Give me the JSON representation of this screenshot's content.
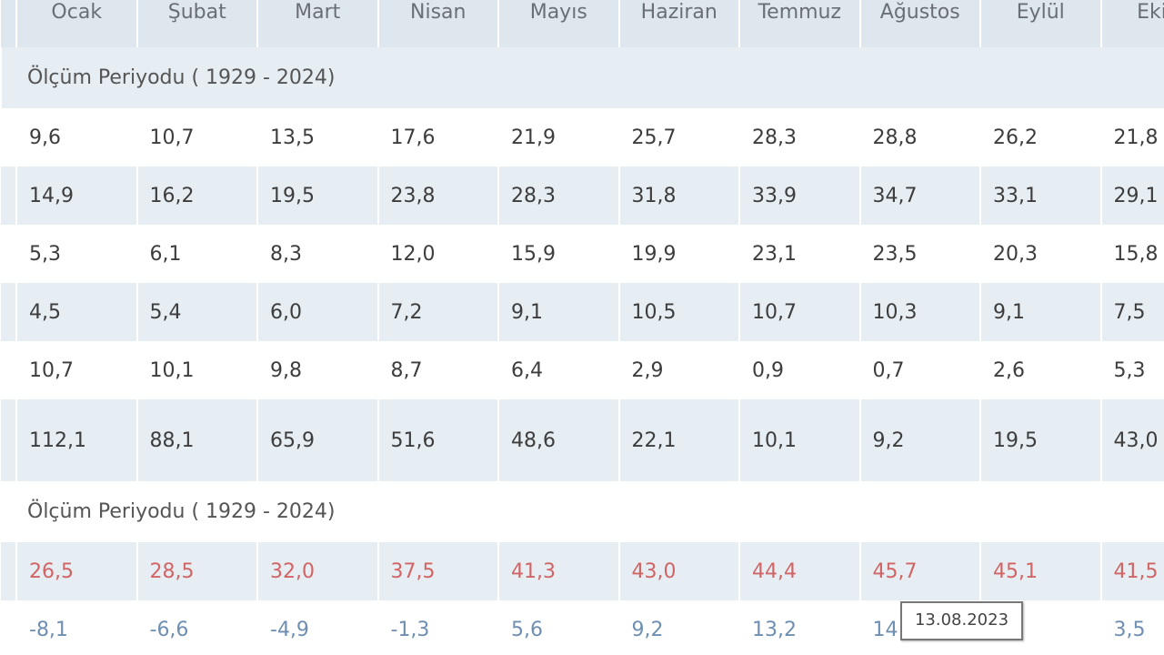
{
  "months": [
    "Ocak",
    "Şubat",
    "Mart",
    "Nisan",
    "Mayıs",
    "Haziran",
    "Temmuz",
    "Ağustos",
    "Eylül",
    "Ekim"
  ],
  "period_label_1": "Ölçüm Periyodu ( 1929 - 2024)",
  "period_label_2": "Ölçüm Periyodu ( 1929 - 2024)",
  "rows": [
    [
      "9,6",
      "10,7",
      "13,5",
      "17,6",
      "21,9",
      "25,7",
      "28,3",
      "28,8",
      "26,2",
      "21,8"
    ],
    [
      "14,9",
      "16,2",
      "19,5",
      "23,8",
      "28,3",
      "31,8",
      "33,9",
      "34,7",
      "33,1",
      "29,1"
    ],
    [
      "5,3",
      "6,1",
      "8,3",
      "12,0",
      "15,9",
      "19,9",
      "23,1",
      "23,5",
      "20,3",
      "15,8"
    ],
    [
      "4,5",
      "5,4",
      "6,0",
      "7,2",
      "9,1",
      "10,5",
      "10,7",
      "10,3",
      "9,1",
      "7,5"
    ],
    [
      "10,7",
      "10,1",
      "9,8",
      "8,7",
      "6,4",
      "2,9",
      "0,9",
      "0,7",
      "2,6",
      "5,3"
    ],
    [
      "112,1",
      "88,1",
      "65,9",
      "51,6",
      "48,6",
      "22,1",
      "10,1",
      "9,2",
      "19,5",
      "43,0"
    ]
  ],
  "extreme_max": [
    "26,5",
    "28,5",
    "32,0",
    "37,5",
    "41,3",
    "43,0",
    "44,4",
    "45,7",
    "45,1",
    "41,5"
  ],
  "extreme_min": [
    "-8,1",
    "-6,6",
    "-4,9",
    "-1,3",
    "5,6",
    "9,2",
    "13,2",
    "14",
    "",
    "3,5"
  ],
  "tooltip": "13.08.2023",
  "colors": {
    "header_bg": "#dfe7ee",
    "alt_row_bg": "#e6edf3",
    "max_text": "#d16464",
    "min_text": "#6e8fb2"
  }
}
